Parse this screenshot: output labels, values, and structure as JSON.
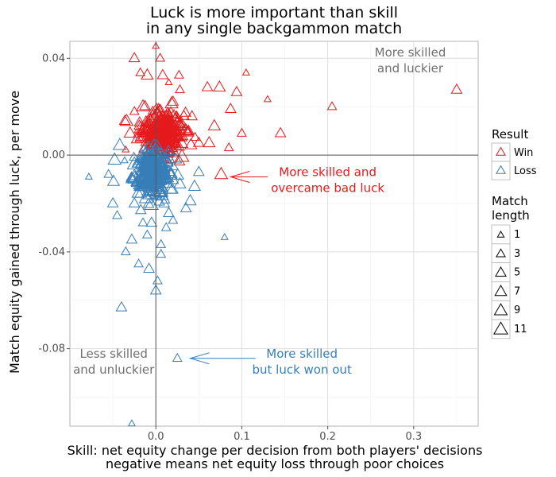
{
  "chart_data": {
    "type": "scatter",
    "title_lines": [
      "Luck is more important than skill",
      "in any single backgammon match"
    ],
    "xlabel_lines": [
      "Skill: net equity change per decision from both players' decisions",
      "negative means net equity loss through poor choices"
    ],
    "ylabel": "Match equity gained through luck, per move",
    "xlim": [
      -0.1,
      0.375
    ],
    "ylim": [
      -0.112,
      0.047
    ],
    "x_ticks": [
      0.0,
      0.1,
      0.2,
      0.3
    ],
    "x_tick_labels": [
      "0.0",
      "0.1",
      "0.2",
      "0.3"
    ],
    "y_ticks": [
      0.04,
      0.0,
      -0.04,
      -0.08
    ],
    "y_tick_labels": [
      "0.04",
      "0.00",
      "-0.04",
      "-0.08"
    ],
    "grid": true,
    "reference_lines": {
      "x": 0,
      "y": 0
    },
    "marker": "triangle",
    "legend_position": "right",
    "legend": {
      "color_title": "Result",
      "color_items": [
        {
          "label": "Win",
          "color": "#e41a1c"
        },
        {
          "label": "Loss",
          "color": "#377eb8"
        }
      ],
      "size_title_lines": [
        "Match",
        "length"
      ],
      "size_items": [
        "1",
        "3",
        "5",
        "7",
        "9",
        "11"
      ]
    },
    "series": [
      {
        "name": "Win",
        "color": "#e41a1c",
        "points": [
          [
            -0.025,
            0.04,
            5
          ],
          [
            -0.018,
            0.034,
            3
          ],
          [
            -0.01,
            0.033,
            7
          ],
          [
            0.008,
            0.033,
            5
          ],
          [
            0.015,
            0.03,
            1
          ],
          [
            0.028,
            0.027,
            3
          ],
          [
            0.06,
            0.028,
            5
          ],
          [
            0.074,
            0.028,
            7
          ],
          [
            0.094,
            0.026,
            5
          ],
          [
            0.105,
            0.034,
            1
          ],
          [
            0.13,
            0.023,
            1
          ],
          [
            0.145,
            0.009,
            5
          ],
          [
            0.205,
            0.02,
            3
          ],
          [
            0.35,
            0.027,
            5
          ],
          [
            0.1,
            0.009,
            3
          ],
          [
            0.085,
            0.003,
            3
          ],
          [
            0.068,
            0.012,
            7
          ],
          [
            0.076,
            -0.008,
            9
          ],
          [
            0.005,
            0.04,
            3
          ],
          [
            0.035,
            0.01,
            9
          ],
          [
            -0.03,
            0.009,
            7
          ],
          [
            0.05,
            0.005,
            5
          ],
          [
            0.042,
            0.016,
            5
          ],
          [
            -0.015,
            0.02,
            9
          ],
          [
            0.02,
            0.022,
            5
          ],
          [
            0.062,
            0.005,
            7
          ],
          [
            0.087,
            0.019,
            5
          ],
          [
            -0.034,
            0.014,
            9
          ],
          [
            0.0,
            0.045,
            1
          ],
          [
            0.027,
            0.033,
            3
          ]
        ],
        "cluster": {
          "center": [
            0.006,
            0.009
          ],
          "spread": [
            0.022,
            0.008
          ],
          "count": 340
        }
      },
      {
        "name": "Loss",
        "color": "#377eb8",
        "points": [
          [
            -0.078,
            -0.009,
            1
          ],
          [
            -0.05,
            -0.02,
            5
          ],
          [
            -0.045,
            -0.025,
            3
          ],
          [
            -0.04,
            -0.063,
            5
          ],
          [
            -0.028,
            -0.111,
            1
          ],
          [
            -0.035,
            -0.04,
            3
          ],
          [
            -0.028,
            -0.035,
            5
          ],
          [
            -0.02,
            -0.045,
            3
          ],
          [
            -0.01,
            -0.033,
            3
          ],
          [
            0.0,
            -0.056,
            5
          ],
          [
            -0.008,
            -0.047,
            5
          ],
          [
            0.006,
            -0.041,
            3
          ],
          [
            0.012,
            -0.03,
            3
          ],
          [
            0.02,
            -0.027,
            3
          ],
          [
            0.025,
            -0.084,
            3
          ],
          [
            0.04,
            -0.019,
            7
          ],
          [
            0.08,
            -0.034,
            1
          ],
          [
            0.035,
            -0.022,
            5
          ],
          [
            -0.042,
            0.004,
            9
          ],
          [
            -0.048,
            -0.002,
            9
          ],
          [
            0.028,
            -0.012,
            7
          ],
          [
            0.045,
            -0.013,
            7
          ],
          [
            -0.015,
            -0.028,
            3
          ],
          [
            0.006,
            -0.037,
            3
          ],
          [
            -0.005,
            -0.028,
            5
          ],
          [
            0.015,
            -0.024,
            5
          ],
          [
            -0.025,
            -0.02,
            5
          ],
          [
            0.05,
            -0.007,
            5
          ],
          [
            -0.055,
            -0.008,
            3
          ],
          [
            0.002,
            -0.052,
            3
          ]
        ],
        "cluster": {
          "center": [
            -0.005,
            -0.007
          ],
          "spread": [
            0.02,
            0.0085
          ],
          "count": 300
        }
      }
    ],
    "annotations": [
      {
        "lines": [
          "More skilled",
          "and luckier"
        ],
        "color": "#707070",
        "x": 0.296,
        "y": 0.0395
      },
      {
        "lines": [
          "More skilled and",
          "overcame bad luck"
        ],
        "color": "#e41a1c",
        "x": 0.2,
        "y": -0.01
      },
      {
        "lines": [
          "More skilled",
          "but luck won out"
        ],
        "color": "#377eb8",
        "x": 0.17,
        "y": -0.085
      },
      {
        "lines": [
          "Less skilled",
          "and unluckier"
        ],
        "color": "#707070",
        "x": -0.049,
        "y": -0.085
      }
    ],
    "arrows": [
      {
        "from": [
          0.13,
          -0.009
        ],
        "to": [
          0.087,
          -0.009
        ],
        "color": "#e41a1c"
      },
      {
        "from": [
          0.116,
          -0.084
        ],
        "to": [
          0.04,
          -0.084
        ],
        "color": "#377eb8"
      }
    ]
  }
}
